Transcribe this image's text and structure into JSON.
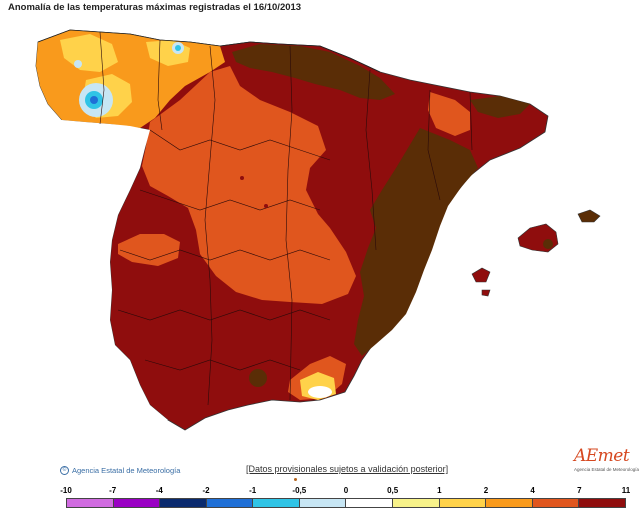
{
  "title": "Anomalía de las temperaturas máximas registradas el 16/10/2013",
  "credit": "Agencia Estatal de Meteorología",
  "provisional_note": "[Datos provisionales sujetos a validación posterior]",
  "logo": {
    "name": "AEmet",
    "subtitle": "Agencia Estatal de Meteorología"
  },
  "legend": {
    "labels": [
      "-10",
      "-7",
      "-4",
      "-2",
      "-1",
      "-0,5",
      "0",
      "0,5",
      "1",
      "2",
      "4",
      "7",
      "11"
    ],
    "colors": [
      "#d06be0",
      "#9a00c4",
      "#0a2a6e",
      "#1f6fd6",
      "#30c4e6",
      "#c7e6f4",
      "#ffffff",
      "#f7f28a",
      "#ffd24a",
      "#f99a1c",
      "#e0561e",
      "#8f0d0d"
    ]
  },
  "colors": {
    "band_1_2": "#ffd24a",
    "band_2_4": "#f99a1c",
    "band_4_7": "#e0561e",
    "band_7_11": "#8f0d0d",
    "band_gt_11": "#5a2d06",
    "band_cold": "#30c4e6",
    "band_light": "#c7e6f4"
  }
}
